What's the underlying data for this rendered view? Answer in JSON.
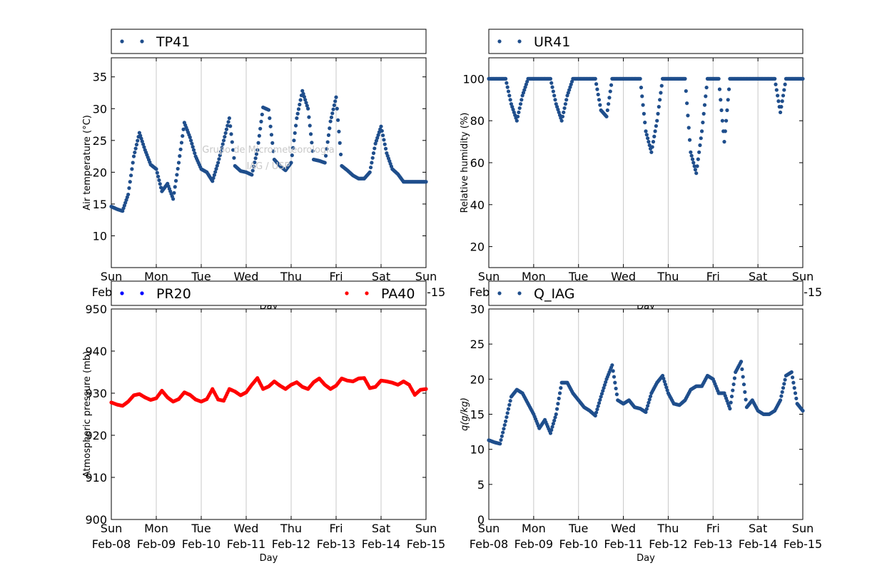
{
  "colors": {
    "series_blue": "#1f4e8c",
    "pr20_blue": "#0000ff",
    "pa40_red": "#ff0000",
    "grid": "#c8c8c8",
    "watermark": "#c8c8c8"
  },
  "shared_x": {
    "xlabel": "Day",
    "tick_labels": [
      "Sun",
      "Mon",
      "Tue",
      "Wed",
      "Thu",
      "Fri",
      "Sat",
      "Sun"
    ],
    "tick_dates": [
      "Feb-08",
      "Feb-09",
      "Feb-10",
      "Feb-11",
      "Feb-12",
      "Feb-13",
      "Feb-14",
      "Feb-15"
    ],
    "range": [
      "2015-02-08",
      "2015-02-15"
    ]
  },
  "watermark": {
    "line1": "Grupo de Micrometeorologia",
    "line2": "IAG / USP"
  },
  "chart_data": [
    {
      "type": "scatter",
      "panel": "top-left",
      "title": "",
      "xlabel": "Day",
      "ylabel": "Air temperature (°C)",
      "ylim": [
        5,
        38
      ],
      "yticks": [
        10,
        15,
        20,
        25,
        30,
        35
      ],
      "grid": "vertical",
      "legend": "top",
      "series": [
        {
          "name": "TP41",
          "color": "#1f4e8c",
          "x": [
            "2015-02-08 00:00",
            "2015-02-08 03:00",
            "2015-02-08 06:00",
            "2015-02-08 09:00",
            "2015-02-08 12:00",
            "2015-02-08 15:00",
            "2015-02-08 18:00",
            "2015-02-08 21:00",
            "2015-02-09 00:00",
            "2015-02-09 03:00",
            "2015-02-09 06:00",
            "2015-02-09 09:00",
            "2015-02-09 12:00",
            "2015-02-09 15:00",
            "2015-02-09 18:00",
            "2015-02-09 21:00",
            "2015-02-10 00:00",
            "2015-02-10 03:00",
            "2015-02-10 06:00",
            "2015-02-10 09:00",
            "2015-02-10 12:00",
            "2015-02-10 15:00",
            "2015-02-10 18:00",
            "2015-02-10 21:00",
            "2015-02-11 00:00",
            "2015-02-11 03:00",
            "2015-02-11 06:00",
            "2015-02-11 09:00",
            "2015-02-11 12:00",
            "2015-02-11 15:00",
            "2015-02-11 18:00",
            "2015-02-11 21:00",
            "2015-02-12 00:00",
            "2015-02-12 03:00",
            "2015-02-12 06:00",
            "2015-02-12 09:00",
            "2015-02-12 12:00",
            "2015-02-12 15:00",
            "2015-02-12 18:00",
            "2015-02-12 21:00",
            "2015-02-13 00:00",
            "2015-02-13 03:00",
            "2015-02-13 06:00",
            "2015-02-13 09:00",
            "2015-02-13 12:00",
            "2015-02-13 15:00",
            "2015-02-13 18:00",
            "2015-02-13 21:00",
            "2015-02-14 00:00",
            "2015-02-14 03:00",
            "2015-02-14 06:00",
            "2015-02-14 09:00",
            "2015-02-14 12:00",
            "2015-02-14 15:00",
            "2015-02-14 18:00",
            "2015-02-14 21:00",
            "2015-02-15 00:00"
          ],
          "y": [
            14.6,
            14.2,
            13.9,
            16.5,
            22.5,
            26.2,
            23.5,
            21.2,
            20.5,
            17.0,
            18.2,
            15.8,
            21.5,
            27.8,
            25.5,
            22.5,
            20.5,
            20.0,
            18.6,
            21.5,
            25.0,
            28.5,
            21.0,
            20.2,
            20.0,
            19.6,
            23.5,
            30.2,
            29.8,
            22.0,
            21.0,
            20.3,
            21.5,
            28.5,
            32.8,
            30.0,
            22.0,
            21.8,
            21.5,
            28.0,
            31.8,
            21.0,
            20.3,
            19.5,
            19.0,
            19.0,
            20.0,
            24.5,
            27.2,
            23.0,
            20.5,
            19.7,
            18.5,
            18.5,
            18.5,
            18.5,
            18.5
          ]
        }
      ]
    },
    {
      "type": "scatter",
      "panel": "top-right",
      "title": "",
      "xlabel": "Day",
      "ylabel": "Relative humidity (%)",
      "ylim": [
        10,
        110
      ],
      "yticks": [
        20,
        40,
        60,
        80,
        100
      ],
      "grid": "vertical",
      "legend": "top",
      "series": [
        {
          "name": "UR41",
          "color": "#1f4e8c",
          "x": [
            "2015-02-08 00:00",
            "2015-02-08 03:00",
            "2015-02-08 06:00",
            "2015-02-08 09:00",
            "2015-02-08 12:00",
            "2015-02-08 15:00",
            "2015-02-08 18:00",
            "2015-02-08 21:00",
            "2015-02-09 00:00",
            "2015-02-09 03:00",
            "2015-02-09 06:00",
            "2015-02-09 09:00",
            "2015-02-09 12:00",
            "2015-02-09 15:00",
            "2015-02-09 18:00",
            "2015-02-09 21:00",
            "2015-02-10 00:00",
            "2015-02-10 03:00",
            "2015-02-10 06:00",
            "2015-02-10 09:00",
            "2015-02-10 12:00",
            "2015-02-10 15:00",
            "2015-02-10 18:00",
            "2015-02-10 21:00",
            "2015-02-11 00:00",
            "2015-02-11 03:00",
            "2015-02-11 06:00",
            "2015-02-11 09:00",
            "2015-02-11 12:00",
            "2015-02-11 15:00",
            "2015-02-11 18:00",
            "2015-02-11 21:00",
            "2015-02-12 00:00",
            "2015-02-12 03:00",
            "2015-02-12 06:00",
            "2015-02-12 09:00",
            "2015-02-12 12:00",
            "2015-02-12 15:00",
            "2015-02-12 18:00",
            "2015-02-12 21:00",
            "2015-02-13 00:00",
            "2015-02-13 03:00",
            "2015-02-13 06:00",
            "2015-02-13 09:00",
            "2015-02-13 12:00",
            "2015-02-13 15:00",
            "2015-02-13 18:00",
            "2015-02-13 21:00",
            "2015-02-14 00:00",
            "2015-02-14 03:00",
            "2015-02-14 06:00",
            "2015-02-14 09:00",
            "2015-02-14 12:00",
            "2015-02-14 15:00",
            "2015-02-14 18:00",
            "2015-02-14 21:00",
            "2015-02-15 00:00"
          ],
          "y": [
            100,
            100,
            100,
            100,
            88,
            80,
            92,
            100,
            100,
            100,
            100,
            100,
            88,
            80,
            92,
            100,
            100,
            100,
            100,
            100,
            85,
            82,
            100,
            100,
            100,
            100,
            100,
            100,
            75,
            65,
            80,
            100,
            100,
            100,
            100,
            100,
            65,
            55,
            75,
            100,
            100,
            100,
            70,
            100,
            100,
            100,
            100,
            100,
            100,
            100,
            100,
            100,
            84,
            100,
            100,
            100,
            100
          ]
        }
      ]
    },
    {
      "type": "scatter",
      "panel": "bottom-left",
      "title": "",
      "xlabel": "Day",
      "ylabel": "Atmospheric pressure (mb)",
      "ylim": [
        900,
        950
      ],
      "yticks": [
        900,
        910,
        920,
        930,
        940,
        950
      ],
      "grid": "vertical",
      "legend": "top",
      "series": [
        {
          "name": "PR20",
          "color": "#0000ff",
          "x": [],
          "y": []
        },
        {
          "name": "PA40",
          "color": "#ff0000",
          "x": [
            "2015-02-08 00:00",
            "2015-02-08 03:00",
            "2015-02-08 06:00",
            "2015-02-08 09:00",
            "2015-02-08 12:00",
            "2015-02-08 15:00",
            "2015-02-08 18:00",
            "2015-02-08 21:00",
            "2015-02-09 00:00",
            "2015-02-09 03:00",
            "2015-02-09 06:00",
            "2015-02-09 09:00",
            "2015-02-09 12:00",
            "2015-02-09 15:00",
            "2015-02-09 18:00",
            "2015-02-09 21:00",
            "2015-02-10 00:00",
            "2015-02-10 03:00",
            "2015-02-10 06:00",
            "2015-02-10 09:00",
            "2015-02-10 12:00",
            "2015-02-10 15:00",
            "2015-02-10 18:00",
            "2015-02-10 21:00",
            "2015-02-11 00:00",
            "2015-02-11 03:00",
            "2015-02-11 06:00",
            "2015-02-11 09:00",
            "2015-02-11 12:00",
            "2015-02-11 15:00",
            "2015-02-11 18:00",
            "2015-02-11 21:00",
            "2015-02-12 00:00",
            "2015-02-12 03:00",
            "2015-02-12 06:00",
            "2015-02-12 09:00",
            "2015-02-12 12:00",
            "2015-02-12 15:00",
            "2015-02-12 18:00",
            "2015-02-12 21:00",
            "2015-02-13 00:00",
            "2015-02-13 03:00",
            "2015-02-13 06:00",
            "2015-02-13 09:00",
            "2015-02-13 12:00",
            "2015-02-13 15:00",
            "2015-02-13 18:00",
            "2015-02-13 21:00",
            "2015-02-14 00:00",
            "2015-02-14 03:00",
            "2015-02-14 06:00",
            "2015-02-14 09:00",
            "2015-02-14 12:00",
            "2015-02-14 15:00",
            "2015-02-14 18:00",
            "2015-02-14 21:00",
            "2015-02-15 00:00"
          ],
          "y": [
            927.8,
            927.3,
            927.0,
            928.0,
            929.5,
            929.8,
            929.0,
            928.4,
            928.8,
            930.6,
            929.0,
            928.0,
            928.6,
            930.2,
            929.6,
            928.5,
            928.0,
            928.6,
            931.0,
            928.5,
            928.2,
            931.0,
            930.4,
            929.5,
            930.2,
            932.0,
            933.6,
            931.0,
            931.6,
            932.8,
            931.8,
            931.0,
            932.0,
            932.6,
            931.5,
            931.0,
            932.6,
            933.5,
            932.0,
            931.0,
            931.8,
            933.5,
            933.0,
            932.8,
            933.5,
            933.6,
            931.2,
            931.5,
            933.0,
            932.8,
            932.5,
            932.0,
            932.8,
            932.0,
            929.6,
            930.8,
            931.0
          ]
        }
      ]
    },
    {
      "type": "scatter",
      "panel": "bottom-right",
      "title": "",
      "xlabel": "Day",
      "ylabel": "q(g/kg)",
      "ylim": [
        0,
        30
      ],
      "yticks": [
        0,
        5,
        10,
        15,
        20,
        25,
        30
      ],
      "grid": "vertical",
      "legend": "top",
      "series": [
        {
          "name": "Q_IAG",
          "color": "#1f4e8c",
          "x": [
            "2015-02-08 00:00",
            "2015-02-08 03:00",
            "2015-02-08 06:00",
            "2015-02-08 09:00",
            "2015-02-08 12:00",
            "2015-02-08 15:00",
            "2015-02-08 18:00",
            "2015-02-08 21:00",
            "2015-02-09 00:00",
            "2015-02-09 03:00",
            "2015-02-09 06:00",
            "2015-02-09 09:00",
            "2015-02-09 12:00",
            "2015-02-09 15:00",
            "2015-02-09 18:00",
            "2015-02-09 21:00",
            "2015-02-10 00:00",
            "2015-02-10 03:00",
            "2015-02-10 06:00",
            "2015-02-10 09:00",
            "2015-02-10 12:00",
            "2015-02-10 15:00",
            "2015-02-10 18:00",
            "2015-02-10 21:00",
            "2015-02-11 00:00",
            "2015-02-11 03:00",
            "2015-02-11 06:00",
            "2015-02-11 09:00",
            "2015-02-11 12:00",
            "2015-02-11 15:00",
            "2015-02-11 18:00",
            "2015-02-11 21:00",
            "2015-02-12 00:00",
            "2015-02-12 03:00",
            "2015-02-12 06:00",
            "2015-02-12 09:00",
            "2015-02-12 12:00",
            "2015-02-12 15:00",
            "2015-02-12 18:00",
            "2015-02-12 21:00",
            "2015-02-13 00:00",
            "2015-02-13 03:00",
            "2015-02-13 06:00",
            "2015-02-13 09:00",
            "2015-02-13 12:00",
            "2015-02-13 15:00",
            "2015-02-13 18:00",
            "2015-02-13 21:00",
            "2015-02-14 00:00",
            "2015-02-14 03:00",
            "2015-02-14 06:00",
            "2015-02-14 09:00",
            "2015-02-14 12:00",
            "2015-02-14 15:00",
            "2015-02-14 18:00",
            "2015-02-14 21:00",
            "2015-02-15 00:00"
          ],
          "y": [
            11.3,
            11.0,
            10.8,
            14.0,
            17.5,
            18.5,
            18.0,
            16.5,
            15.0,
            13.0,
            14.2,
            12.3,
            15.0,
            19.5,
            19.5,
            18.0,
            17.0,
            16.0,
            15.5,
            14.8,
            17.5,
            20.0,
            22.0,
            17.0,
            16.5,
            17.0,
            16.0,
            15.8,
            15.3,
            18.0,
            19.5,
            20.5,
            18.0,
            16.5,
            16.3,
            17.0,
            18.5,
            19.0,
            19.0,
            20.5,
            20.0,
            18.0,
            18.0,
            15.8,
            21.0,
            22.5,
            16.0,
            17.0,
            15.5,
            15.0,
            15.0,
            15.5,
            17.0,
            20.5,
            21.0,
            16.5,
            15.5
          ]
        }
      ]
    }
  ]
}
